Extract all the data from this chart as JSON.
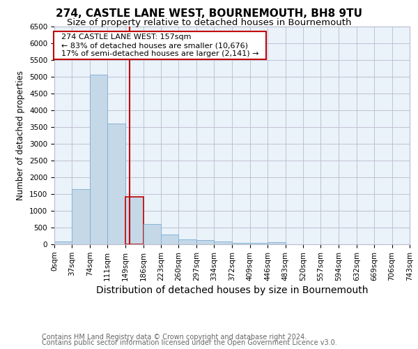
{
  "title": "274, CASTLE LANE WEST, BOURNEMOUTH, BH8 9TU",
  "subtitle": "Size of property relative to detached houses in Bournemouth",
  "xlabel": "Distribution of detached houses by size in Bournemouth",
  "ylabel": "Number of detached properties",
  "footnote1": "Contains HM Land Registry data © Crown copyright and database right 2024.",
  "footnote2": "Contains public sector information licensed under the Open Government Licence v3.0.",
  "annotation_line1": "274 CASTLE LANE WEST: 157sqm",
  "annotation_line2": "← 83% of detached houses are smaller (10,676)",
  "annotation_line3": "17% of semi-detached houses are larger (2,141) →",
  "bin_edges": [
    0,
    37,
    74,
    111,
    149,
    186,
    223,
    260,
    297,
    334,
    372,
    409,
    446,
    483,
    520,
    557,
    594,
    632,
    669,
    706,
    743
  ],
  "bar_heights": [
    75,
    1650,
    5050,
    3600,
    1420,
    610,
    300,
    155,
    125,
    75,
    50,
    40,
    60,
    5,
    2,
    1,
    1,
    1,
    0,
    0
  ],
  "bar_color": "#C5D8E8",
  "bar_edge_color": "#7AAECF",
  "highlight_bar_index": 4,
  "highlight_bar_edge_color": "#C00000",
  "vline_x": 157,
  "vline_color": "#C00000",
  "ylim": [
    0,
    6500
  ],
  "yticks": [
    0,
    500,
    1000,
    1500,
    2000,
    2500,
    3000,
    3500,
    4000,
    4500,
    5000,
    5500,
    6000,
    6500
  ],
  "bg_color": "#FFFFFF",
  "plot_bg_color": "#EAF2FA",
  "grid_color": "#BBBBCC",
  "annotation_box_color": "#C00000",
  "title_fontsize": 11,
  "subtitle_fontsize": 9.5,
  "xlabel_fontsize": 10,
  "ylabel_fontsize": 8.5,
  "tick_fontsize": 7.5,
  "annotation_fontsize": 8,
  "footnote_fontsize": 7
}
